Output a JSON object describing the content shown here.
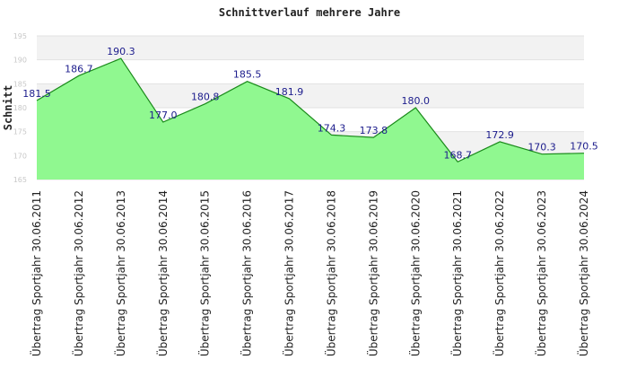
{
  "chart_data": {
    "type": "area",
    "title": "Schnittverlauf mehrere Jahre",
    "ylabel": "Schnitt",
    "xlabel": "",
    "ylim": [
      165,
      195
    ],
    "yticks": [
      165,
      170,
      175,
      180,
      185,
      190,
      195
    ],
    "grid": true,
    "categories": [
      "Übertrag Sportjahr 30.06.2011",
      "Übertrag Sportjahr 30.06.2012",
      "Übertrag Sportjahr 30.06.2013",
      "Übertrag Sportjahr 30.06.2014",
      "Übertrag Sportjahr 30.06.2015",
      "Übertrag Sportjahr 30.06.2016",
      "Übertrag Sportjahr 30.06.2017",
      "Übertrag Sportjahr 30.06.2018",
      "Übertrag Sportjahr 30.06.2019",
      "Übertrag Sportjahr 30.06.2020",
      "Übertrag Sportjahr 30.06.2021",
      "Übertrag Sportjahr 30.06.2022",
      "Übertrag Sportjahr 30.06.2023",
      "Übertrag Sportjahr 30.06.2024"
    ],
    "values": [
      181.5,
      186.7,
      190.3,
      177.0,
      180.8,
      185.5,
      181.9,
      174.3,
      173.8,
      180.0,
      168.7,
      172.9,
      170.3,
      170.5
    ],
    "data_labels": [
      "181.5",
      "186.7",
      "190.3",
      "177.0",
      "180.8",
      "185.5",
      "181.9",
      "174.3",
      "173.8",
      "180.0",
      "168.7",
      "172.9",
      "170.3",
      "170.5"
    ],
    "colors": {
      "fill": "#90f890",
      "line": "#1a8a1a",
      "band_light": "#f2f2f2",
      "band_white": "#ffffff",
      "label": "#1c1c8c"
    }
  }
}
